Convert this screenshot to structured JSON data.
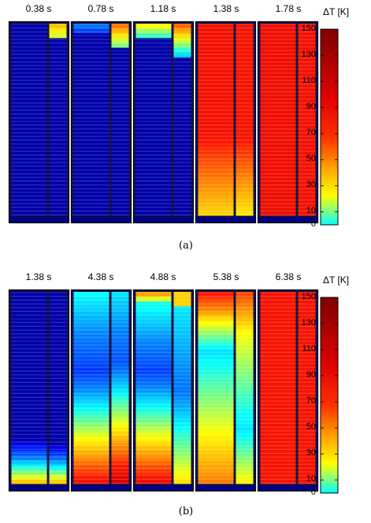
{
  "panels": [
    {
      "id": "a",
      "caption": "(a)",
      "unit": "ΔT [K]",
      "times": [
        "0.38 s",
        "0.78 s",
        "1.18 s",
        "1.38 s",
        "1.78 s"
      ],
      "colorbar_ticks": [
        "150",
        "130",
        "110",
        "90",
        "70",
        "50",
        "30",
        "10",
        "0"
      ]
    },
    {
      "id": "b",
      "caption": "(b)",
      "unit": "ΔT [K]",
      "times": [
        "1.38 s",
        "4.38 s",
        "4.88 s",
        "5.38 s",
        "6.38 s"
      ],
      "colorbar_ticks": [
        "150",
        "130",
        "110",
        "90",
        "70",
        "50",
        "30",
        "10",
        "0"
      ]
    }
  ],
  "colormap": [
    "#00007f",
    "#0000ff",
    "#007fff",
    "#00ffff",
    "#7fff7f",
    "#ffff00",
    "#ff7f00",
    "#ff0000",
    "#7f0000"
  ]
}
